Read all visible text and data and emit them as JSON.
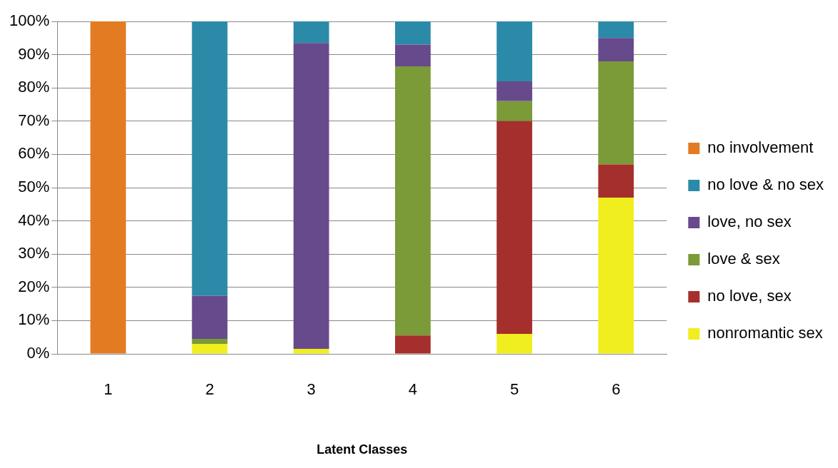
{
  "chart_data": {
    "type": "bar",
    "stacked": true,
    "xlabel": "Latent Classes",
    "categories": [
      "1",
      "2",
      "3",
      "4",
      "5",
      "6"
    ],
    "series": [
      {
        "name": "nonromantic sex",
        "color": "#f0ee1e",
        "values": [
          0,
          3,
          1.5,
          0,
          6,
          47
        ]
      },
      {
        "name": "no love, sex",
        "color": "#a52f2c",
        "values": [
          0,
          0,
          0,
          5.5,
          64,
          10
        ]
      },
      {
        "name": "love & sex",
        "color": "#7b9a38",
        "values": [
          0,
          1.5,
          0,
          81,
          6,
          31
        ]
      },
      {
        "name": "love, no sex",
        "color": "#664a8c",
        "values": [
          0,
          13,
          92,
          6.5,
          6,
          7
        ]
      },
      {
        "name": "no love & no sex",
        "color": "#2b8aa8",
        "values": [
          0,
          82.5,
          6.5,
          7,
          18,
          5
        ]
      },
      {
        "name": "no involvement",
        "color": "#e37b22",
        "values": [
          100,
          0,
          0,
          0,
          0,
          0
        ]
      }
    ],
    "ylim": [
      0,
      100
    ],
    "yticks": [
      {
        "value": 0,
        "label": "0%"
      },
      {
        "value": 10,
        "label": "10%"
      },
      {
        "value": 20,
        "label": "20%"
      },
      {
        "value": 30,
        "label": "30%"
      },
      {
        "value": 40,
        "label": "40%"
      },
      {
        "value": 50,
        "label": "50%"
      },
      {
        "value": 60,
        "label": "60%"
      },
      {
        "value": 70,
        "label": "70%"
      },
      {
        "value": 80,
        "label": "80%"
      },
      {
        "value": 90,
        "label": "90%"
      },
      {
        "value": 100,
        "label": "100%"
      }
    ],
    "grid": "y",
    "legend": "right"
  }
}
